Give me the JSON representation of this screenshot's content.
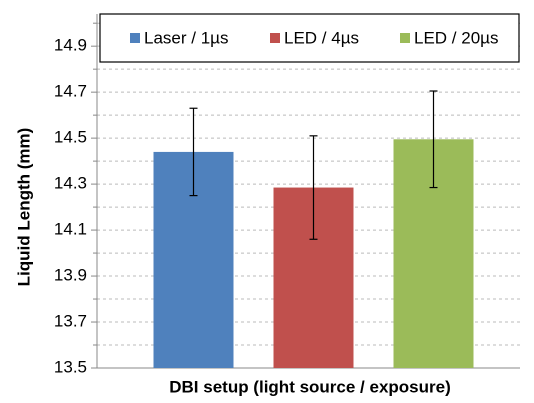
{
  "chart_data": {
    "type": "bar",
    "y_label": "Liquid Length (mm)",
    "x_label": "DBI setup (light source / exposure)",
    "categories": [
      null
    ],
    "series": [
      {
        "name": "Laser / 1µs",
        "color": "#4f81bd",
        "values": [
          14.44
        ],
        "errors": [
          0.19
        ]
      },
      {
        "name": "LED / 4µs",
        "color": "#c0504d",
        "values": [
          14.285
        ],
        "errors": [
          0.225
        ]
      },
      {
        "name": "LED / 20µs",
        "color": "#9bbb59",
        "values": [
          14.495
        ],
        "errors": [
          0.21
        ]
      }
    ],
    "ylim": [
      13.5,
      15.04
    ],
    "yticks": [
      13.5,
      13.7,
      13.9,
      14.1,
      14.3,
      14.5,
      14.7,
      14.9
    ],
    "minor_yticks": [
      13.6,
      13.8,
      14.0,
      14.2,
      14.4,
      14.6,
      14.8,
      15.0
    ],
    "grid": true,
    "legend": "top"
  }
}
